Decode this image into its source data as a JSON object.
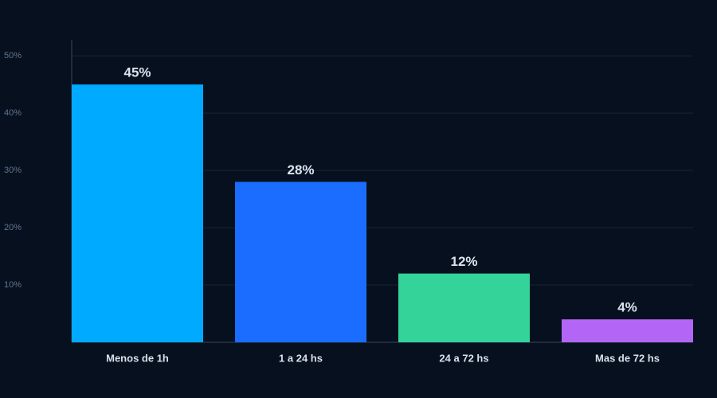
{
  "chart_data": {
    "type": "bar",
    "categories": [
      "Menos de 1h",
      "1 a 24 hs",
      "24 a 72 hs",
      "Mas de 72 hs"
    ],
    "values": [
      45,
      28,
      12,
      4
    ],
    "value_labels": [
      "45%",
      "28%",
      "12%",
      "4%"
    ],
    "colors": [
      "#00aaff",
      "#1a6dff",
      "#34d399",
      "#b366f5"
    ],
    "ylim": [
      0,
      52.8
    ],
    "yticks": [
      {
        "value": 10,
        "label": "10%"
      },
      {
        "value": 20,
        "label": "20%"
      },
      {
        "value": 30,
        "label": "30%"
      },
      {
        "value": 40,
        "label": "40%"
      },
      {
        "value": 50,
        "label": "50%"
      }
    ],
    "grid": true
  }
}
